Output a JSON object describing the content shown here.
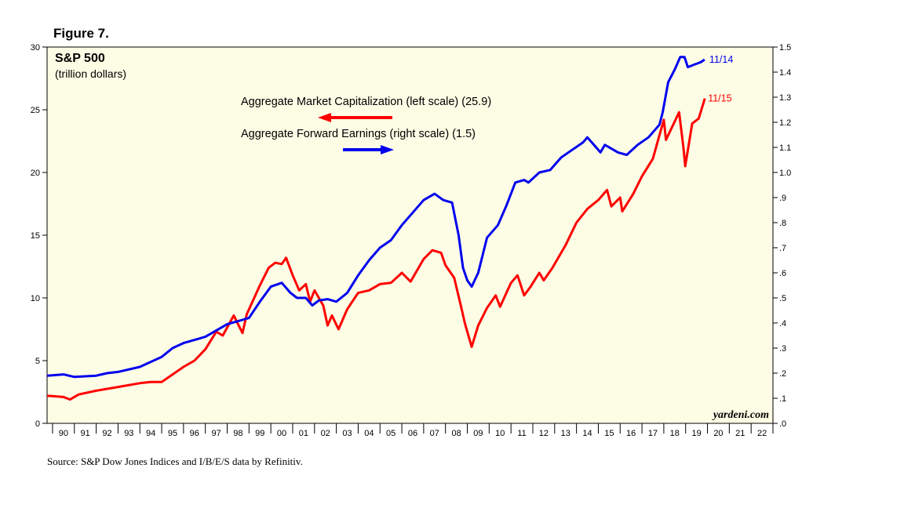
{
  "figure_label": "Figure 7.",
  "source_note": "Source: S&P Dow Jones Indices and I/B/E/S data by Refinitiv.",
  "credit": "yardeni.com",
  "colors": {
    "plot_background": "#fdfde6",
    "market_cap": "#ff0000",
    "earnings": "#0000ee"
  },
  "chart_data": {
    "type": "line",
    "title": "S&P 500",
    "subtitle": "(trillion dollars)",
    "x_range": [
      1989.75,
      2023.0
    ],
    "x_tick_labels": [
      "90",
      "91",
      "92",
      "93",
      "94",
      "95",
      "96",
      "97",
      "98",
      "99",
      "00",
      "01",
      "02",
      "03",
      "04",
      "05",
      "06",
      "07",
      "08",
      "09",
      "10",
      "11",
      "12",
      "13",
      "14",
      "15",
      "16",
      "17",
      "18",
      "19",
      "20",
      "21",
      "22"
    ],
    "y_left": {
      "range": [
        0,
        30
      ],
      "ticks": [
        0,
        5,
        10,
        15,
        20,
        25,
        30
      ],
      "tick_labels": [
        "0",
        "5",
        "10",
        "15",
        "20",
        "25",
        "30"
      ]
    },
    "y_right": {
      "range": [
        0,
        1.5
      ],
      "ticks": [
        0,
        0.1,
        0.2,
        0.3,
        0.4,
        0.5,
        0.6,
        0.7,
        0.8,
        0.9,
        1.0,
        1.1,
        1.2,
        1.3,
        1.4,
        1.5
      ],
      "tick_labels": [
        ".0",
        ".1",
        ".2",
        ".3",
        ".4",
        ".5",
        ".6",
        ".7",
        ".8",
        ".9",
        "1.0",
        "1.1",
        "1.2",
        "1.3",
        "1.4",
        "1.5"
      ]
    },
    "grid": false,
    "series": [
      {
        "name": "Aggregate Market Capitalization (left scale) (25.9)",
        "axis": "left",
        "end_label": "11/15",
        "legend_arrow": "left",
        "points": [
          [
            1989.75,
            2.2
          ],
          [
            1990.5,
            2.1
          ],
          [
            1990.8,
            1.9
          ],
          [
            1991.2,
            2.3
          ],
          [
            1992.0,
            2.6
          ],
          [
            1993.0,
            2.9
          ],
          [
            1994.0,
            3.2
          ],
          [
            1994.5,
            3.3
          ],
          [
            1995.0,
            3.3
          ],
          [
            1995.5,
            3.9
          ],
          [
            1996.0,
            4.5
          ],
          [
            1996.5,
            5.0
          ],
          [
            1997.0,
            5.9
          ],
          [
            1997.5,
            7.3
          ],
          [
            1997.8,
            7.0
          ],
          [
            1998.3,
            8.6
          ],
          [
            1998.7,
            7.2
          ],
          [
            1998.9,
            8.7
          ],
          [
            1999.5,
            11.0
          ],
          [
            1999.9,
            12.4
          ],
          [
            2000.2,
            12.8
          ],
          [
            2000.5,
            12.7
          ],
          [
            2000.7,
            13.2
          ],
          [
            2001.0,
            11.8
          ],
          [
            2001.3,
            10.6
          ],
          [
            2001.6,
            11.1
          ],
          [
            2001.8,
            9.7
          ],
          [
            2002.0,
            10.6
          ],
          [
            2002.4,
            9.4
          ],
          [
            2002.6,
            7.8
          ],
          [
            2002.8,
            8.6
          ],
          [
            2003.1,
            7.5
          ],
          [
            2003.5,
            9.1
          ],
          [
            2004.0,
            10.4
          ],
          [
            2004.5,
            10.6
          ],
          [
            2005.0,
            11.1
          ],
          [
            2005.5,
            11.2
          ],
          [
            2006.0,
            12.0
          ],
          [
            2006.4,
            11.3
          ],
          [
            2007.0,
            13.1
          ],
          [
            2007.4,
            13.8
          ],
          [
            2007.8,
            13.6
          ],
          [
            2008.0,
            12.6
          ],
          [
            2008.4,
            11.6
          ],
          [
            2008.7,
            9.4
          ],
          [
            2008.9,
            7.9
          ],
          [
            2009.2,
            6.1
          ],
          [
            2009.5,
            7.8
          ],
          [
            2009.9,
            9.2
          ],
          [
            2010.3,
            10.2
          ],
          [
            2010.5,
            9.3
          ],
          [
            2011.0,
            11.2
          ],
          [
            2011.3,
            11.8
          ],
          [
            2011.6,
            10.2
          ],
          [
            2011.9,
            10.9
          ],
          [
            2012.3,
            12.0
          ],
          [
            2012.5,
            11.4
          ],
          [
            2012.9,
            12.4
          ],
          [
            2013.5,
            14.2
          ],
          [
            2014.0,
            16.0
          ],
          [
            2014.5,
            17.1
          ],
          [
            2015.0,
            17.8
          ],
          [
            2015.4,
            18.6
          ],
          [
            2015.6,
            17.3
          ],
          [
            2016.0,
            18.0
          ],
          [
            2016.1,
            16.9
          ],
          [
            2016.6,
            18.3
          ],
          [
            2017.0,
            19.7
          ],
          [
            2017.5,
            21.1
          ],
          [
            2018.0,
            24.2
          ],
          [
            2018.1,
            22.6
          ],
          [
            2018.7,
            24.8
          ],
          [
            2018.9,
            22.0
          ],
          [
            2018.98,
            20.5
          ],
          [
            2019.3,
            23.9
          ],
          [
            2019.6,
            24.3
          ],
          [
            2019.88,
            25.9
          ]
        ]
      },
      {
        "name": "Aggregate Forward Earnings (right scale) (1.5)",
        "axis": "right",
        "end_label": "11/14",
        "legend_arrow": "right",
        "points": [
          [
            1989.75,
            0.19
          ],
          [
            1990.5,
            0.195
          ],
          [
            1991.0,
            0.185
          ],
          [
            1992.0,
            0.19
          ],
          [
            1992.5,
            0.2
          ],
          [
            1993.0,
            0.205
          ],
          [
            1994.0,
            0.225
          ],
          [
            1995.0,
            0.265
          ],
          [
            1995.5,
            0.3
          ],
          [
            1996.0,
            0.32
          ],
          [
            1997.0,
            0.345
          ],
          [
            1997.5,
            0.37
          ],
          [
            1998.0,
            0.395
          ],
          [
            1998.6,
            0.41
          ],
          [
            1999.0,
            0.42
          ],
          [
            1999.5,
            0.485
          ],
          [
            2000.0,
            0.545
          ],
          [
            2000.5,
            0.56
          ],
          [
            2000.9,
            0.52
          ],
          [
            2001.2,
            0.5
          ],
          [
            2001.6,
            0.5
          ],
          [
            2001.9,
            0.47
          ],
          [
            2002.2,
            0.49
          ],
          [
            2002.6,
            0.495
          ],
          [
            2003.0,
            0.485
          ],
          [
            2003.5,
            0.52
          ],
          [
            2004.0,
            0.59
          ],
          [
            2004.5,
            0.65
          ],
          [
            2005.0,
            0.7
          ],
          [
            2005.5,
            0.73
          ],
          [
            2006.0,
            0.79
          ],
          [
            2006.5,
            0.84
          ],
          [
            2007.0,
            0.89
          ],
          [
            2007.5,
            0.915
          ],
          [
            2007.9,
            0.89
          ],
          [
            2008.3,
            0.88
          ],
          [
            2008.6,
            0.75
          ],
          [
            2008.8,
            0.62
          ],
          [
            2009.0,
            0.57
          ],
          [
            2009.2,
            0.545
          ],
          [
            2009.5,
            0.6
          ],
          [
            2009.9,
            0.74
          ],
          [
            2010.4,
            0.79
          ],
          [
            2010.8,
            0.87
          ],
          [
            2011.2,
            0.96
          ],
          [
            2011.6,
            0.97
          ],
          [
            2011.8,
            0.96
          ],
          [
            2012.3,
            1.0
          ],
          [
            2012.8,
            1.01
          ],
          [
            2013.3,
            1.06
          ],
          [
            2013.8,
            1.09
          ],
          [
            2014.3,
            1.12
          ],
          [
            2014.5,
            1.14
          ],
          [
            2014.9,
            1.1
          ],
          [
            2015.1,
            1.08
          ],
          [
            2015.3,
            1.11
          ],
          [
            2015.7,
            1.09
          ],
          [
            2015.9,
            1.08
          ],
          [
            2016.3,
            1.07
          ],
          [
            2016.8,
            1.11
          ],
          [
            2017.3,
            1.14
          ],
          [
            2017.8,
            1.19
          ],
          [
            2017.95,
            1.24
          ],
          [
            2018.2,
            1.36
          ],
          [
            2018.5,
            1.41
          ],
          [
            2018.75,
            1.46
          ],
          [
            2018.95,
            1.46
          ],
          [
            2019.1,
            1.42
          ],
          [
            2019.4,
            1.43
          ],
          [
            2019.7,
            1.44
          ],
          [
            2019.87,
            1.45
          ]
        ]
      }
    ]
  }
}
